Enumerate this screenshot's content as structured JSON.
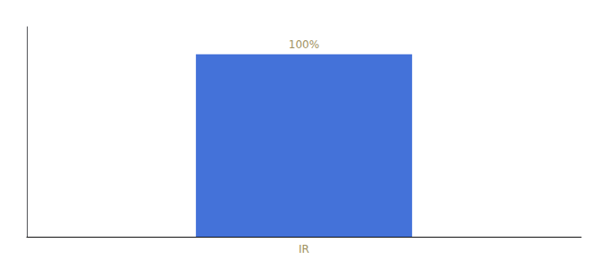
{
  "chart_data": {
    "type": "bar",
    "categories": [
      "IR"
    ],
    "values": [
      100
    ],
    "value_labels": [
      "100%"
    ],
    "data_labels": true,
    "color": "#4472d9",
    "ylim": [
      0,
      115
    ],
    "grid": false,
    "tick_labels": "x"
  }
}
